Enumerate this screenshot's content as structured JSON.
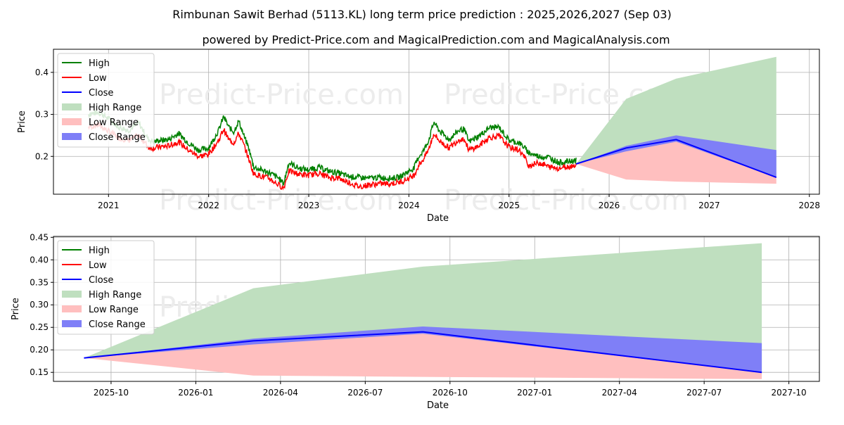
{
  "title": "Rimbunan Sawit Berhad (5113.KL) long term price prediction : 2025,2026,2027 (Sep 03)",
  "subtitle": "powered by Predict-Price.com and MagicalPrediction.com and MagicalAnalysis.com",
  "watermark": "Predict-Price.com",
  "colors": {
    "high": "#008000",
    "low": "#ff0000",
    "close": "#0000ff",
    "high_range": "#bfdfbf",
    "low_range": "#ffbfbf",
    "close_range": "#7f7ff7"
  },
  "chart_data": [
    {
      "type": "line",
      "xlabel": "Date",
      "ylabel": "Price",
      "xlim": [
        2020.45,
        2028.1
      ],
      "ylim": [
        0.11,
        0.455
      ],
      "xticks": [
        2021,
        2022,
        2023,
        2024,
        2025,
        2026,
        2027,
        2028
      ],
      "xtick_labels": [
        "2021",
        "2022",
        "2023",
        "2024",
        "2025",
        "2026",
        "2027",
        "2028"
      ],
      "yticks": [
        0.2,
        0.3,
        0.4
      ],
      "ytick_labels": [
        "0.2",
        "0.3",
        "0.4"
      ],
      "grid": true,
      "legend": "upper-left",
      "legend_entries": [
        "High",
        "Low",
        "Close",
        "High Range",
        "Low Range",
        "Close Range"
      ],
      "history": {
        "x": [
          2020.8,
          2020.9,
          2021.0,
          2021.1,
          2021.2,
          2021.3,
          2021.4,
          2021.45,
          2021.5,
          2021.6,
          2021.7,
          2021.8,
          2021.9,
          2022.0,
          2022.1,
          2022.15,
          2022.2,
          2022.25,
          2022.3,
          2022.35,
          2022.4,
          2022.45,
          2022.5,
          2022.6,
          2022.7,
          2022.75,
          2022.8,
          2022.9,
          2023.0,
          2023.1,
          2023.2,
          2023.3,
          2023.4,
          2023.5,
          2023.6,
          2023.7,
          2023.8,
          2023.9,
          2024.0,
          2024.05,
          2024.1,
          2024.15,
          2024.2,
          2024.25,
          2024.3,
          2024.4,
          2024.5,
          2024.55,
          2024.6,
          2024.7,
          2024.8,
          2024.9,
          2025.0,
          2025.1,
          2025.15,
          2025.2,
          2025.3,
          2025.4,
          2025.5,
          2025.6,
          2025.67
        ],
        "high": [
          0.3,
          0.305,
          0.29,
          0.27,
          0.262,
          0.28,
          0.24,
          0.235,
          0.238,
          0.24,
          0.255,
          0.232,
          0.215,
          0.22,
          0.262,
          0.295,
          0.27,
          0.258,
          0.285,
          0.25,
          0.22,
          0.175,
          0.17,
          0.162,
          0.148,
          0.135,
          0.185,
          0.172,
          0.168,
          0.174,
          0.165,
          0.16,
          0.152,
          0.15,
          0.148,
          0.15,
          0.148,
          0.15,
          0.165,
          0.172,
          0.2,
          0.215,
          0.24,
          0.282,
          0.262,
          0.24,
          0.262,
          0.265,
          0.235,
          0.248,
          0.268,
          0.27,
          0.238,
          0.232,
          0.222,
          0.208,
          0.2,
          0.198,
          0.185,
          0.188,
          0.19
        ],
        "low": [
          0.27,
          0.275,
          0.26,
          0.245,
          0.238,
          0.25,
          0.222,
          0.22,
          0.222,
          0.225,
          0.235,
          0.215,
          0.2,
          0.205,
          0.238,
          0.265,
          0.24,
          0.232,
          0.255,
          0.228,
          0.195,
          0.158,
          0.155,
          0.148,
          0.132,
          0.125,
          0.165,
          0.158,
          0.155,
          0.16,
          0.15,
          0.148,
          0.138,
          0.128,
          0.132,
          0.135,
          0.135,
          0.138,
          0.148,
          0.155,
          0.18,
          0.195,
          0.218,
          0.255,
          0.238,
          0.22,
          0.24,
          0.242,
          0.215,
          0.225,
          0.245,
          0.248,
          0.222,
          0.215,
          0.2,
          0.178,
          0.185,
          0.175,
          0.172,
          0.176,
          0.18
        ]
      },
      "forecast": {
        "x": [
          2025.67,
          2026.17,
          2026.67,
          2027.67
        ],
        "close": [
          0.182,
          0.22,
          0.24,
          0.15
        ],
        "high_range_upper": [
          0.182,
          0.337,
          0.385,
          0.437
        ],
        "low_range_lower": [
          0.182,
          0.145,
          0.14,
          0.135
        ],
        "close_range_upper": [
          0.182,
          0.225,
          0.25,
          0.215
        ],
        "close_range_lower": [
          0.182,
          0.212,
          0.235,
          0.15
        ]
      }
    },
    {
      "type": "line",
      "xlabel": "Date",
      "ylabel": "Price",
      "xlim": [
        2025.58,
        2027.84
      ],
      "ylim": [
        0.13,
        0.452
      ],
      "xticks": [
        2025.75,
        2026.0,
        2026.25,
        2026.5,
        2026.75,
        2027.0,
        2027.25,
        2027.5,
        2027.75
      ],
      "xtick_labels": [
        "2025-10",
        "2026-01",
        "2026-04",
        "2026-07",
        "2026-10",
        "2027-01",
        "2027-04",
        "2027-07",
        "2027-10"
      ],
      "yticks": [
        0.15,
        0.2,
        0.25,
        0.3,
        0.35,
        0.4,
        0.45
      ],
      "ytick_labels": [
        "0.15",
        "0.20",
        "0.25",
        "0.30",
        "0.35",
        "0.40",
        "0.45"
      ],
      "grid": true,
      "legend": "upper-left",
      "legend_entries": [
        "High",
        "Low",
        "Close",
        "High Range",
        "Low Range",
        "Close Range"
      ],
      "forecast": {
        "x": [
          2025.67,
          2026.17,
          2026.67,
          2027.67
        ],
        "close": [
          0.182,
          0.22,
          0.24,
          0.15
        ],
        "high_range_upper": [
          0.182,
          0.337,
          0.385,
          0.437
        ],
        "low_range_lower": [
          0.182,
          0.143,
          0.14,
          0.135
        ],
        "close_range_upper": [
          0.182,
          0.225,
          0.252,
          0.215
        ],
        "close_range_lower": [
          0.182,
          0.212,
          0.236,
          0.15
        ]
      }
    }
  ]
}
